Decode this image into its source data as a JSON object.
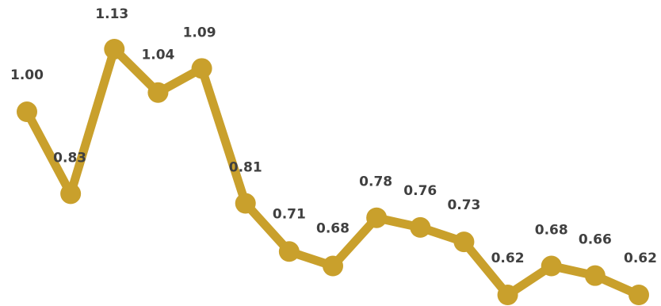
{
  "chart_data": {
    "type": "line",
    "title": "",
    "xlabel": "",
    "ylabel": "",
    "grid": false,
    "legend": "none",
    "ylim": [
      0.6,
      1.15
    ],
    "x": [
      1,
      2,
      3,
      4,
      5,
      6,
      7,
      8,
      9,
      10,
      11,
      12,
      13,
      14,
      15
    ],
    "series": [
      {
        "values": [
          1.0,
          0.83,
          1.13,
          1.04,
          1.09,
          0.81,
          0.71,
          0.68,
          0.78,
          0.76,
          0.73,
          0.62,
          0.68,
          0.66,
          0.62
        ],
        "labels": [
          "1.00",
          "0.83",
          "1.13",
          "1.04",
          "1.09",
          "0.81",
          "0.71",
          "0.68",
          "0.78",
          "0.76",
          "0.73",
          "0.62",
          "0.68",
          "0.66",
          "0.62"
        ],
        "color": "#C9A02C"
      }
    ],
    "label_color": "#404040"
  }
}
